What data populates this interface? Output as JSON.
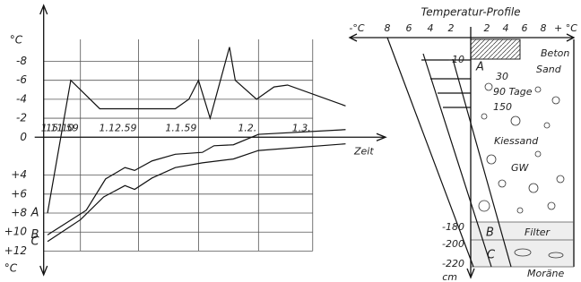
{
  "chart_data": {
    "type": "line",
    "ylabel_top": "°C",
    "ylabel_bottom": "°C",
    "xlabel": "Zeit",
    "xlim": [
      -2,
      170
    ],
    "ylim": [
      -10.5,
      13
    ],
    "inverted_y": true,
    "grid": true,
    "xticks": [
      {
        "value": 0,
        "label": "15.10"
      },
      {
        "value": 17,
        "label": "1.11.59"
      },
      {
        "value": 47,
        "label": "1.12.59"
      },
      {
        "value": 78,
        "label": "1.1.59"
      },
      {
        "value": 109,
        "label": "1.2."
      },
      {
        "value": 137,
        "label": "1.3."
      }
    ],
    "yticks": [
      -8,
      -6,
      -4,
      -2,
      0,
      {
        "value": 4,
        "label": "+4"
      },
      {
        "value": 6,
        "label": "+6"
      },
      {
        "value": 8,
        "label": "+8"
      },
      {
        "value": 10,
        "label": "+10"
      },
      {
        "value": 12,
        "label": "+12"
      }
    ],
    "series": [
      {
        "name": "A",
        "color": "#111",
        "x": [
          0,
          12,
          27,
          66,
          73,
          78,
          84,
          94,
          97,
          108,
          117,
          124,
          154
        ],
        "values": [
          8,
          -6,
          -3,
          -3,
          -4,
          -6,
          -2,
          -9.5,
          -6,
          -4,
          -5.3,
          -5.5,
          -3.3
        ]
      },
      {
        "name": "B",
        "color": "#111",
        "x": [
          0,
          20,
          30,
          40,
          45,
          54,
          66,
          80,
          86,
          96,
          109,
          154
        ],
        "values": [
          10.3,
          7.7,
          4.4,
          3.2,
          3.5,
          2.5,
          1.8,
          1.6,
          0.9,
          0.8,
          -0.3,
          -0.8
        ]
      },
      {
        "name": "C",
        "color": "#111",
        "x": [
          0,
          17,
          29,
          40,
          45,
          54,
          66,
          80,
          96,
          109,
          154
        ],
        "values": [
          11,
          8.7,
          6.3,
          5.1,
          5.5,
          4.3,
          3.2,
          2.7,
          2.3,
          1.4,
          0.7
        ]
      }
    ]
  },
  "profile": {
    "title": "Temperatur-Profile",
    "minus_unit": "-°C",
    "plus_unit": "+ °C",
    "scale": [
      8,
      6,
      4,
      2,
      2,
      4,
      6,
      8
    ],
    "depths": [
      "-10",
      "-180",
      "-200",
      "-220"
    ],
    "depth_unit": "cm",
    "days": [
      "30",
      "90 Tage",
      "150"
    ],
    "layers": [
      "Beton",
      "Sand",
      "Kiessand",
      "GW",
      "Filter",
      "Moräne"
    ],
    "curves": [
      "A",
      "B",
      "C"
    ]
  }
}
